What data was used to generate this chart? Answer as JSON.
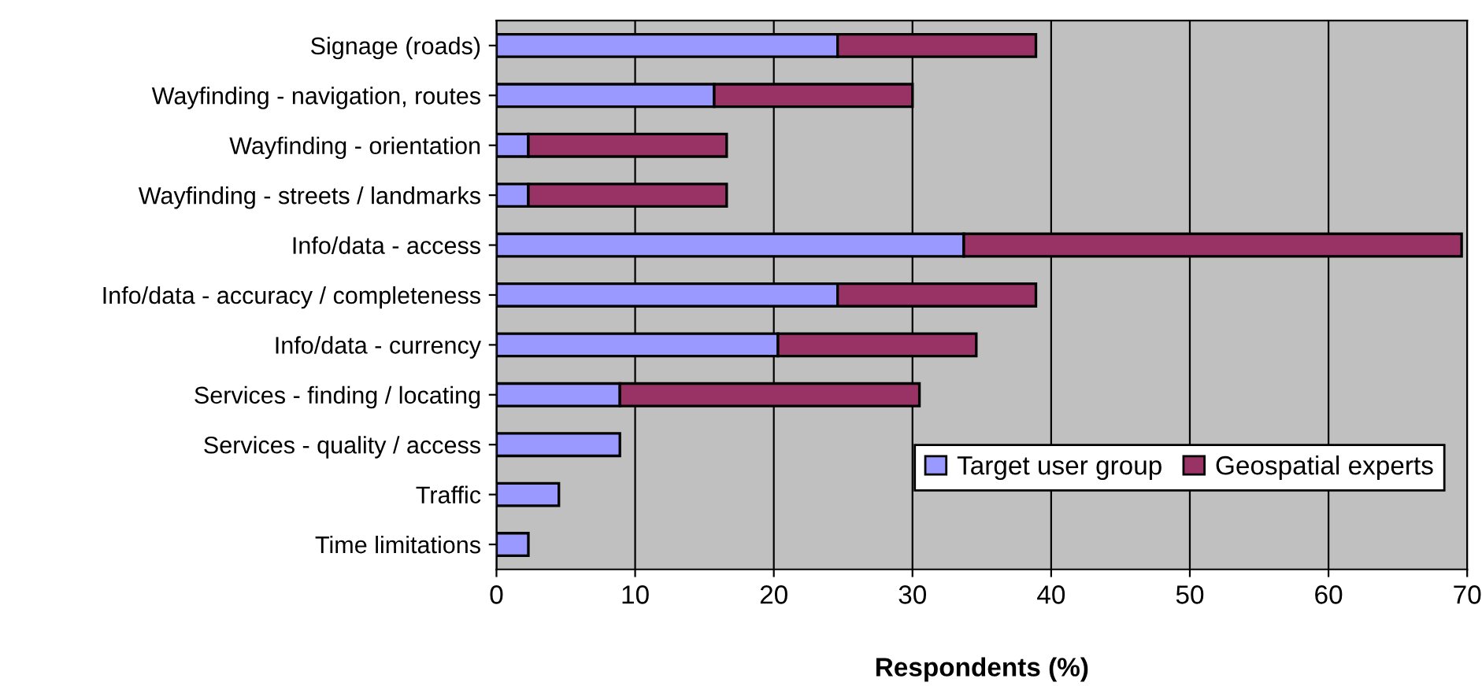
{
  "chart_data": {
    "type": "bar",
    "orientation": "horizontal",
    "stacked": true,
    "xlabel": "Respondents (%)",
    "categories": [
      "Signage (roads)",
      "Wayfinding - navigation, routes",
      "Wayfinding - orientation",
      "Wayfinding - streets / landmarks",
      "Info/data - access",
      "Info/data - accuracy / completeness",
      "Info/data - currency",
      "Services - finding / locating",
      "Services - quality / access",
      "Traffic",
      "Time limitations"
    ],
    "series": [
      {
        "name": "Target user group",
        "color": "#9999ff",
        "values": [
          24.6,
          15.7,
          2.3,
          2.3,
          33.7,
          24.6,
          20.3,
          8.9,
          8.9,
          4.5,
          2.3
        ]
      },
      {
        "name": "Geospatial experts",
        "color": "#993366",
        "values": [
          14.3,
          14.3,
          14.3,
          14.3,
          35.9,
          14.3,
          14.3,
          21.6,
          null,
          null,
          null
        ]
      }
    ],
    "xlim": [
      0,
      70
    ],
    "xticks": [
      0,
      10,
      20,
      30,
      40,
      50,
      60,
      70
    ],
    "grid": "x",
    "legend": "bottom right"
  }
}
